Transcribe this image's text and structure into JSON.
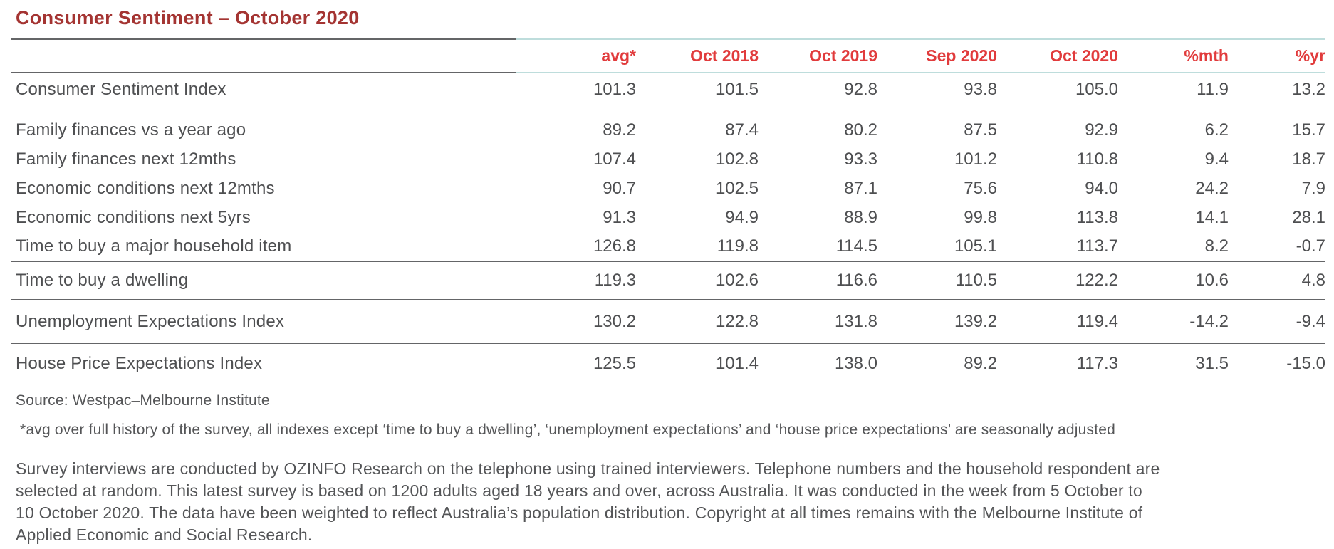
{
  "title": "Consumer Sentiment – October 2020",
  "table": {
    "columns": [
      "avg*",
      "Oct 2018",
      "Oct 2019",
      "Sep 2020",
      "Oct 2020",
      "%mth",
      "%yr"
    ],
    "sections": [
      {
        "rows": [
          {
            "label": "Consumer Sentiment Index",
            "values": [
              "101.3",
              "101.5",
              "92.8",
              "93.8",
              "105.0",
              "11.9",
              "13.2"
            ],
            "gap_after": true
          },
          {
            "label": "Family finances vs a year ago",
            "values": [
              "89.2",
              "87.4",
              "80.2",
              "87.5",
              "92.9",
              "6.2",
              "15.7"
            ]
          },
          {
            "label": "Family finances next 12mths",
            "values": [
              "107.4",
              "102.8",
              "93.3",
              "101.2",
              "110.8",
              "9.4",
              "18.7"
            ]
          },
          {
            "label": "Economic conditions next 12mths",
            "values": [
              "90.7",
              "102.5",
              "87.1",
              "75.6",
              "94.0",
              "24.2",
              "7.9"
            ]
          },
          {
            "label": "Economic conditions next 5yrs",
            "values": [
              "91.3",
              "94.9",
              "88.9",
              "99.8",
              "113.8",
              "14.1",
              "28.1"
            ]
          },
          {
            "label": "Time to buy a major household item",
            "values": [
              "126.8",
              "119.8",
              "114.5",
              "105.1",
              "113.7",
              "8.2",
              "-0.7"
            ]
          }
        ]
      },
      {
        "rows": [
          {
            "label": "Time to buy a dwelling",
            "values": [
              "119.3",
              "102.6",
              "116.6",
              "110.5",
              "122.2",
              "10.6",
              "4.8"
            ]
          }
        ]
      },
      {
        "rows": [
          {
            "label": "Unemployment Expectations Index",
            "values": [
              "130.2",
              "122.8",
              "131.8",
              "139.2",
              "119.4",
              "-14.2",
              "-9.4"
            ]
          }
        ]
      },
      {
        "rows": [
          {
            "label": "House Price Expectations Index",
            "values": [
              "125.5",
              "101.4",
              "138.0",
              "89.2",
              "117.3",
              "31.5",
              "-15.0"
            ]
          }
        ]
      }
    ]
  },
  "source": "Source: Westpac–Melbourne Institute",
  "footnote": "*avg over full history of the survey, all indexes except ‘time to buy a dwelling’, ‘unemployment expectations’ and ‘house price expectations’ are seasonally adjusted",
  "paragraph_lines": [
    "Survey interviews are conducted by OZINFO Research on the telephone using trained interviewers. Telephone numbers and the household respondent are",
    "selected at random. This latest survey is based on 1200 adults aged 18 years and over, across Australia. It was conducted in the week from 5 October to",
    "10 October 2020. The data have been weighted to reflect Australia’s population distribution. Copyright at all times remains with the Melbourne Institute of",
    "Applied Economic and Social Research."
  ],
  "colors": {
    "title_red": "#a43432",
    "header_red": "#e13b3c",
    "body_text": "#4e4f51",
    "note_text": "#545557",
    "dark_rule": "#646567",
    "teal_rule": "#bedddc"
  },
  "chart_data": {
    "type": "table",
    "title": "Consumer Sentiment – October 2020",
    "columns": [
      "avg*",
      "Oct 2018",
      "Oct 2019",
      "Sep 2020",
      "Oct 2020",
      "%mth",
      "%yr"
    ],
    "rows": [
      [
        "Consumer Sentiment Index",
        101.3,
        101.5,
        92.8,
        93.8,
        105.0,
        11.9,
        13.2
      ],
      [
        "Family finances vs a year ago",
        89.2,
        87.4,
        80.2,
        87.5,
        92.9,
        6.2,
        15.7
      ],
      [
        "Family finances next 12mths",
        107.4,
        102.8,
        93.3,
        101.2,
        110.8,
        9.4,
        18.7
      ],
      [
        "Economic conditions next 12mths",
        90.7,
        102.5,
        87.1,
        75.6,
        94.0,
        24.2,
        7.9
      ],
      [
        "Economic conditions next 5yrs",
        91.3,
        94.9,
        88.9,
        99.8,
        113.8,
        14.1,
        28.1
      ],
      [
        "Time to buy a major household item",
        126.8,
        119.8,
        114.5,
        105.1,
        113.7,
        8.2,
        -0.7
      ],
      [
        "Time to buy a dwelling",
        119.3,
        102.6,
        116.6,
        110.5,
        122.2,
        10.6,
        4.8
      ],
      [
        "Unemployment Expectations Index",
        130.2,
        122.8,
        131.8,
        139.2,
        119.4,
        -14.2,
        -9.4
      ],
      [
        "House Price Expectations Index",
        125.5,
        101.4,
        138.0,
        89.2,
        117.3,
        31.5,
        -15.0
      ]
    ]
  }
}
